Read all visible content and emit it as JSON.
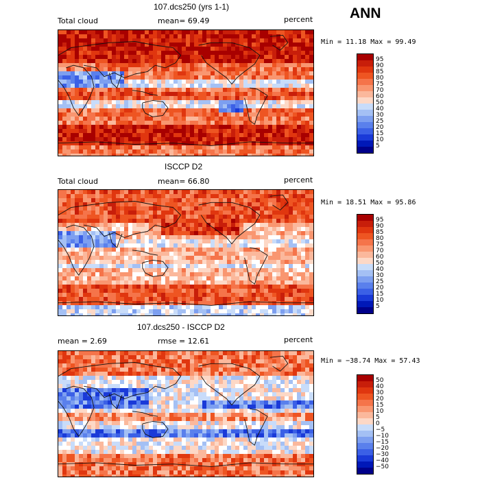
{
  "season": "ANN",
  "colors": {
    "diverge": [
      "#a80000",
      "#c81e0a",
      "#e0360f",
      "#ee5522",
      "#f5744a",
      "#f99670",
      "#fbb89c",
      "#fdd8c6",
      "#ffffff",
      "#c8dcfa",
      "#a4c0f4",
      "#7d9ff0",
      "#5a80ec",
      "#3b60e6",
      "#1a3ad8",
      "#0018b8",
      "#00008a"
    ]
  },
  "panels": [
    {
      "title": "107.dcs250 (yrs 1-1)",
      "left_label": "Total cloud",
      "mid_label": "mean=  69.49",
      "right_label": "percent",
      "minmax": "Min =  11.18 Max =  99.49",
      "map_type": "model"
    },
    {
      "title": "ISCCP D2",
      "left_label": "Total cloud",
      "mid_label": "mean=  66.80",
      "right_label": "percent",
      "minmax": "Min =  18.51 Max =  95.86",
      "map_type": "obs"
    },
    {
      "title": "107.dcs250 - ISCCP D2",
      "left_label": "mean =   2.69",
      "mid_label": "rmse =  12.61",
      "right_label": "percent",
      "minmax": "Min = −38.74 Max =  57.43",
      "map_type": "diff"
    }
  ],
  "colorbars": {
    "absolute": [
      "95",
      "90",
      "85",
      "80",
      "75",
      "70",
      "60",
      "50",
      "40",
      "30",
      "25",
      "20",
      "15",
      "10",
      "5"
    ],
    "difference": [
      "50",
      "40",
      "30",
      "20",
      "15",
      "10",
      "5",
      "0",
      "−5",
      "−10",
      "−15",
      "−20",
      "−30",
      "−40",
      "−50"
    ]
  }
}
